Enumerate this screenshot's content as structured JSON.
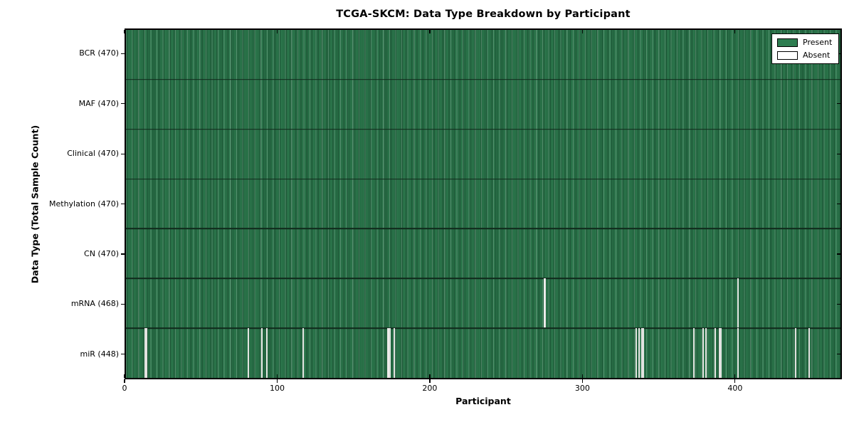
{
  "title": "TCGA-SKCM: Data Type Breakdown by Participant",
  "axes": {
    "x_label": "Participant",
    "y_label": "Data Type (Total Sample Count)"
  },
  "legend": {
    "present_label": "Present",
    "absent_label": "Absent"
  },
  "colors": {
    "present_fill": "#2e7d50",
    "present_edge": "#14361f",
    "absent_fill": "#f4f4f2",
    "axis_color": "#000000",
    "background": "#ffffff"
  },
  "chart_data": {
    "type": "heatmap",
    "title": "TCGA-SKCM: Data Type Breakdown by Participant",
    "xlabel": "Participant",
    "ylabel": "Data Type (Total Sample Count)",
    "xlim": [
      0,
      470
    ],
    "x_ticks": [
      0,
      100,
      200,
      300,
      400
    ],
    "x_max": 470,
    "total_participants": 470,
    "grid": false,
    "legend_position": "upper right",
    "legend_entries": [
      "Present",
      "Absent"
    ],
    "rows": [
      {
        "data_type": "BCR",
        "label": "BCR (470)",
        "present_count": 470,
        "absent_participants": []
      },
      {
        "data_type": "MAF",
        "label": "MAF (470)",
        "present_count": 470,
        "absent_participants": []
      },
      {
        "data_type": "Clinical",
        "label": "Clinical (470)",
        "present_count": 470,
        "absent_participants": []
      },
      {
        "data_type": "Methylation",
        "label": "Methylation (470)",
        "present_count": 470,
        "absent_participants": []
      },
      {
        "data_type": "CN",
        "label": "CN (470)",
        "present_count": 470,
        "absent_participants": []
      },
      {
        "data_type": "mRNA",
        "label": "mRNA (468)",
        "present_count": 468,
        "absent_participants": [
          275,
          402
        ]
      },
      {
        "data_type": "miR",
        "label": "miR (448)",
        "present_count": 448,
        "absent_participants": [
          12,
          13,
          80,
          89,
          92,
          116,
          172,
          173,
          176,
          335,
          337,
          339,
          340,
          373,
          379,
          381,
          387,
          390,
          391,
          402,
          440,
          449
        ]
      }
    ]
  }
}
